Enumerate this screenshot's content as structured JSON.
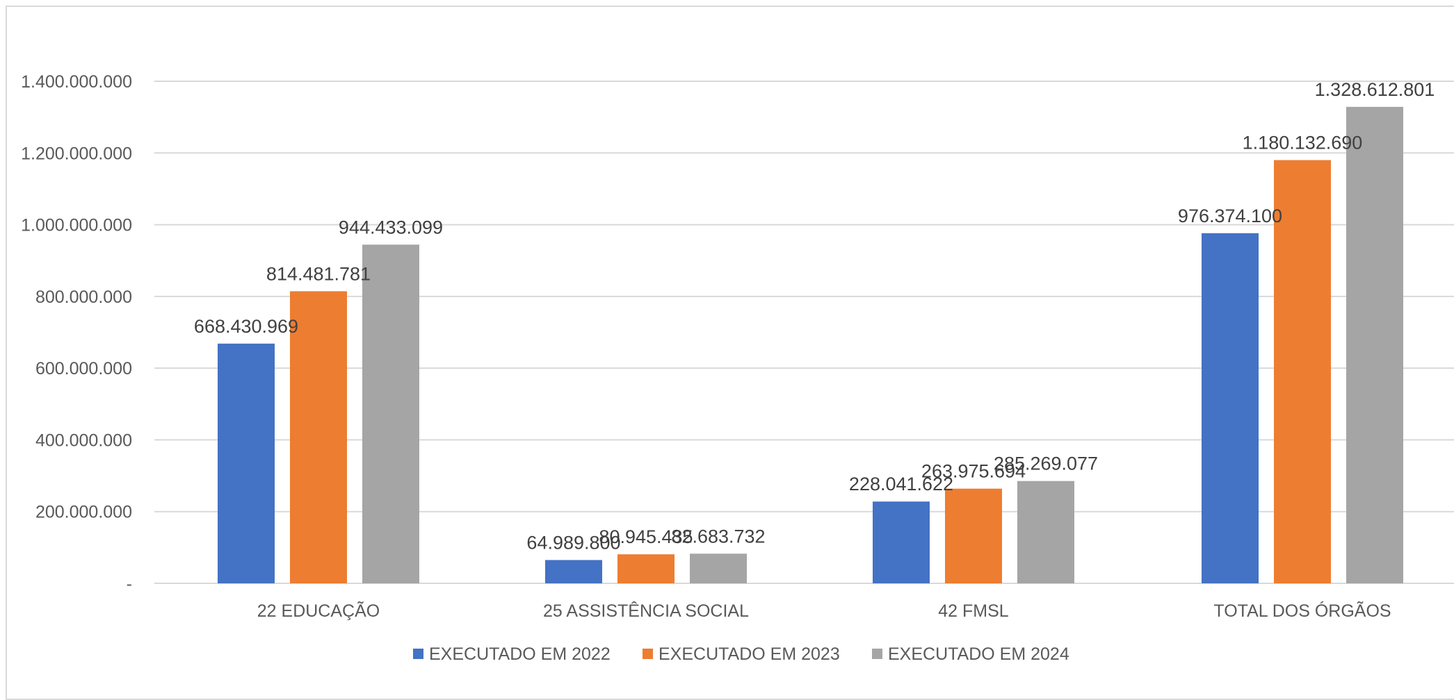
{
  "chart_data": {
    "type": "bar",
    "categories": [
      "22 EDUCAÇÃO",
      "25 ASSISTÊNCIA SOCIAL",
      "42 FMSL",
      "TOTAL DOS ÓRGÃOS"
    ],
    "series": [
      {
        "name": "EXECUTADO EM 2022",
        "color": "#4472C4",
        "values": [
          668430969,
          64989800,
          228041622,
          976374100
        ],
        "labels": [
          "668.430.969",
          "64.989.800",
          "228.041.622",
          "976.374.100"
        ]
      },
      {
        "name": "EXECUTADO EM 2023",
        "color": "#ED7D31",
        "values": [
          814481781,
          80945435,
          263975694,
          1180132690
        ],
        "labels": [
          "814.481.781",
          "80.945.435",
          "263.975.694",
          "1.180.132.690"
        ]
      },
      {
        "name": "EXECUTADO EM 2024",
        "color": "#A5A5A5",
        "values": [
          944433099,
          82683732,
          285269077,
          1328612801
        ],
        "labels": [
          "944.433.099",
          "82.683.732",
          "285.269.077",
          "1.328.612.801"
        ]
      }
    ],
    "y_ticks": [
      {
        "value": 0,
        "label": "-"
      },
      {
        "value": 200000000,
        "label": "200.000.000"
      },
      {
        "value": 400000000,
        "label": "400.000.000"
      },
      {
        "value": 600000000,
        "label": "600.000.000"
      },
      {
        "value": 800000000,
        "label": "800.000.000"
      },
      {
        "value": 1000000000,
        "label": "1.000.000.000"
      },
      {
        "value": 1200000000,
        "label": "1.200.000.000"
      },
      {
        "value": 1400000000,
        "label": "1.400.000.000"
      }
    ],
    "ylim": [
      0,
      1400000000
    ],
    "grid": true,
    "legend_position": "bottom",
    "title": "",
    "xlabel": "",
    "ylabel": ""
  }
}
